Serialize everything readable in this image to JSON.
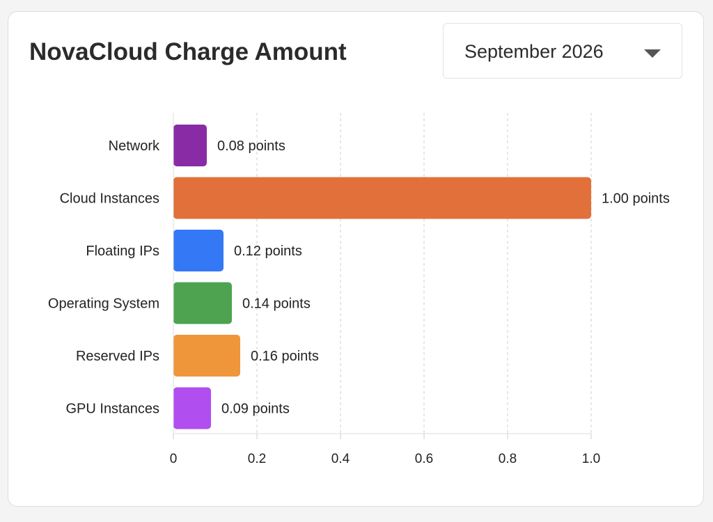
{
  "header": {
    "title": "NovaCloud Charge Amount",
    "month_select": {
      "value": "September 2026",
      "icon": "caret-down-icon"
    }
  },
  "chart_data": {
    "type": "bar",
    "orientation": "horizontal",
    "categories": [
      "Network",
      "Cloud Instances",
      "Floating IPs",
      "Operating System",
      "Reserved IPs",
      "GPU Instances"
    ],
    "values": [
      0.08,
      1.0,
      0.12,
      0.14,
      0.16,
      0.09
    ],
    "value_labels": [
      "0.08 points",
      "1.00 points",
      "0.12 points",
      "0.14 points",
      "0.16 points",
      "0.09 points"
    ],
    "colors": [
      "#8a2ba6",
      "#e2703a",
      "#3478f6",
      "#4ea350",
      "#f0963a",
      "#b04ef0"
    ],
    "xlim": [
      0,
      1.0
    ],
    "xticks": [
      0,
      0.2,
      0.4,
      0.6,
      0.8,
      1.0
    ],
    "xtick_labels": [
      "0",
      "0.2",
      "0.4",
      "0.6",
      "0.8",
      "1.0"
    ],
    "grid": "vertical-dashed",
    "legend": "none"
  }
}
